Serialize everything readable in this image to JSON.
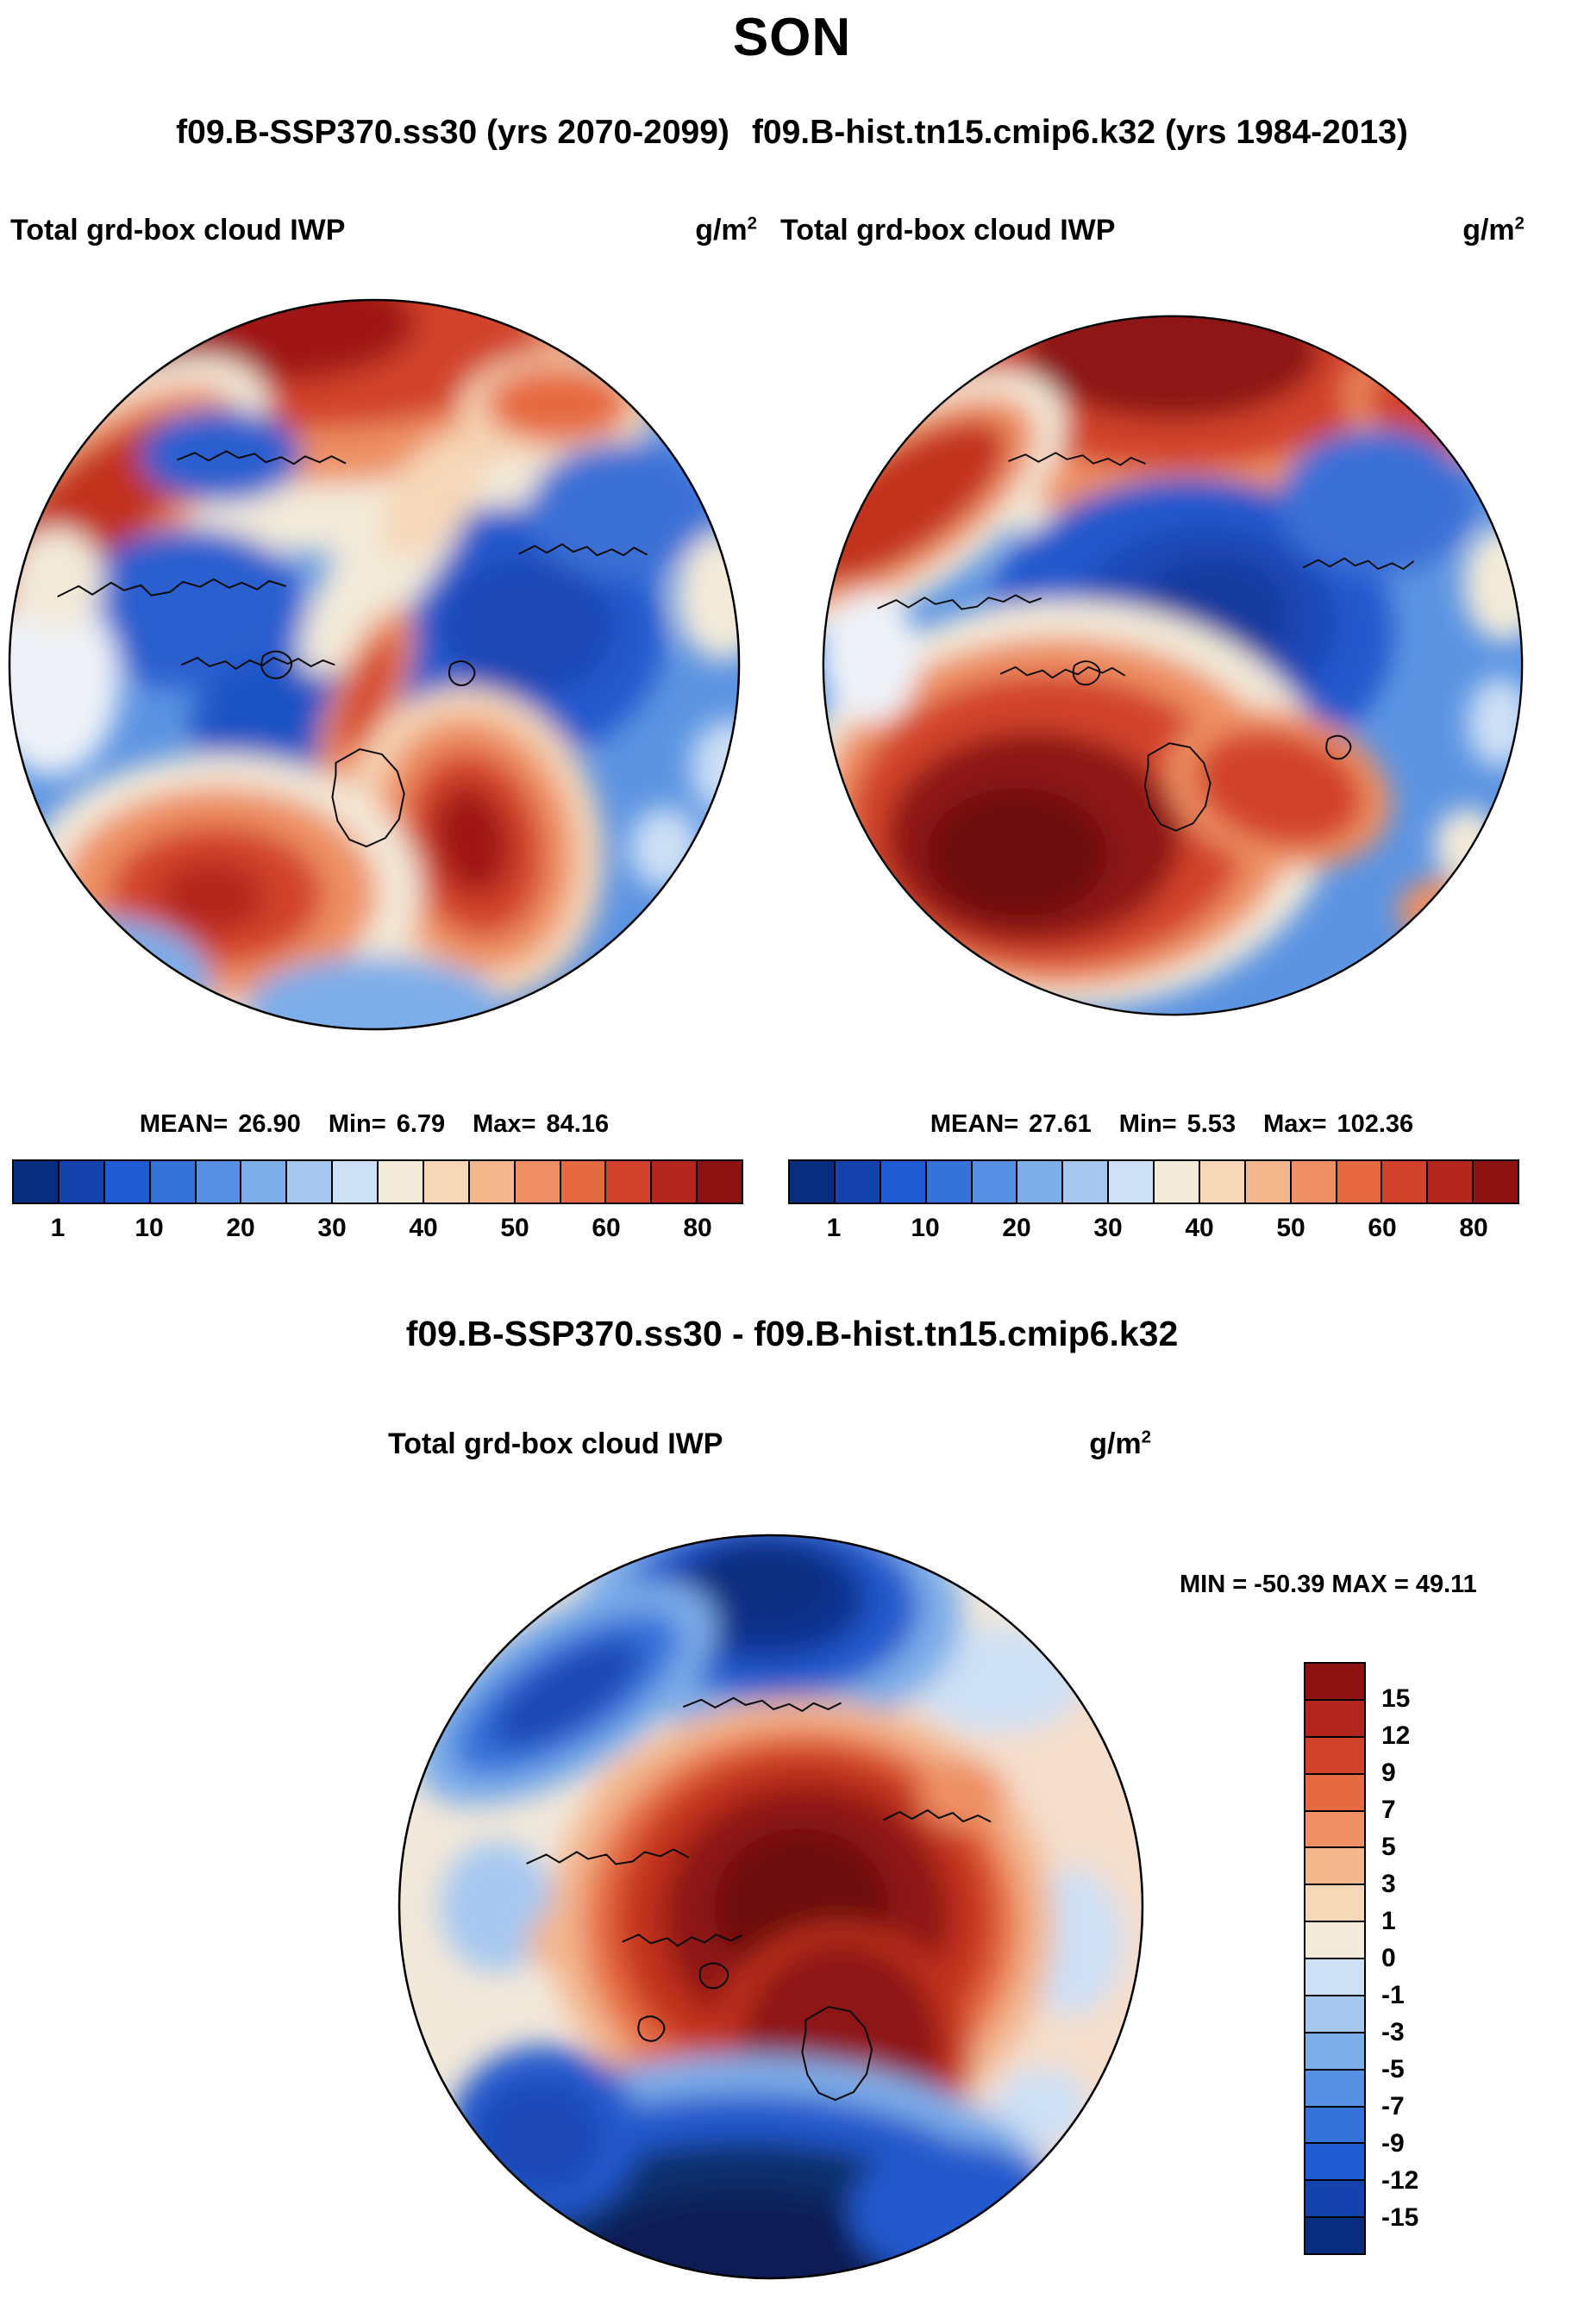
{
  "page": {
    "title": "SON",
    "run_left": "f09.B-SSP370.ss30 (yrs 2070-2099)",
    "run_right": "f09.B-hist.tn15.cmip6.k32 (yrs 1984-2013)"
  },
  "labels": {
    "mean": "MEAN=",
    "min": "Min=",
    "max": "Max=",
    "diff_min": "MIN =",
    "diff_max": "MAX ="
  },
  "panels": [
    {
      "id": "ssp370",
      "var_title": "Total grd-box cloud IWP",
      "units_base": "g/m",
      "units_exp": "2",
      "stats": {
        "mean": "26.90",
        "min": "6.79",
        "max": "84.16"
      },
      "colorbar": {
        "colors": [
          "#082d7f",
          "#1543ae",
          "#1f5bd1",
          "#3572da",
          "#5590e2",
          "#7dade9",
          "#a6c8f0",
          "#cde0f5",
          "#f3ead9",
          "#f6d7b8",
          "#f3b68d",
          "#ee9064",
          "#e66a40",
          "#d2422a",
          "#b3261d",
          "#8e1212"
        ],
        "ticks": [
          {
            "label": "1",
            "pos": 0.0625
          },
          {
            "label": "10",
            "pos": 0.1875
          },
          {
            "label": "20",
            "pos": 0.3125
          },
          {
            "label": "30",
            "pos": 0.4375
          },
          {
            "label": "40",
            "pos": 0.5625
          },
          {
            "label": "50",
            "pos": 0.6875
          },
          {
            "label": "60",
            "pos": 0.8125
          },
          {
            "label": "80",
            "pos": 0.9375
          }
        ]
      }
    },
    {
      "id": "hist",
      "var_title": "Total grd-box cloud IWP",
      "units_base": "g/m",
      "units_exp": "2",
      "stats": {
        "mean": "27.61",
        "min": "5.53",
        "max": "102.36"
      },
      "colorbar": {
        "colors": [
          "#082d7f",
          "#1543ae",
          "#1f5bd1",
          "#3572da",
          "#5590e2",
          "#7dade9",
          "#a6c8f0",
          "#cde0f5",
          "#f3ead9",
          "#f6d7b8",
          "#f3b68d",
          "#ee9064",
          "#e66a40",
          "#d2422a",
          "#b3261d",
          "#8e1212"
        ],
        "ticks": [
          {
            "label": "1",
            "pos": 0.0625
          },
          {
            "label": "10",
            "pos": 0.1875
          },
          {
            "label": "20",
            "pos": 0.3125
          },
          {
            "label": "30",
            "pos": 0.4375
          },
          {
            "label": "40",
            "pos": 0.5625
          },
          {
            "label": "50",
            "pos": 0.6875
          },
          {
            "label": "60",
            "pos": 0.8125
          },
          {
            "label": "80",
            "pos": 0.9375
          }
        ]
      }
    }
  ],
  "diff": {
    "title": "f09.B-SSP370.ss30 - f09.B-hist.tn15.cmip6.k32",
    "var_title": "Total grd-box cloud IWP",
    "units_base": "g/m",
    "units_exp": "2",
    "min": "-50.39",
    "max": "49.11",
    "colorbar": {
      "colors": [
        "#8e1212",
        "#b3261d",
        "#d2422a",
        "#e66a40",
        "#ee9064",
        "#f3b68d",
        "#f6d7b8",
        "#f3ead9",
        "#cde0f5",
        "#a6c8f0",
        "#7dade9",
        "#5590e2",
        "#3572da",
        "#1f5bd1",
        "#1543ae",
        "#082d7f"
      ],
      "ticks": [
        {
          "label": "15",
          "pos": 0.0625
        },
        {
          "label": "12",
          "pos": 0.125
        },
        {
          "label": "9",
          "pos": 0.1875
        },
        {
          "label": "7",
          "pos": 0.25
        },
        {
          "label": "5",
          "pos": 0.3125
        },
        {
          "label": "3",
          "pos": 0.375
        },
        {
          "label": "1",
          "pos": 0.4375
        },
        {
          "label": "0",
          "pos": 0.5
        },
        {
          "label": "-1",
          "pos": 0.5625
        },
        {
          "label": "-3",
          "pos": 0.625
        },
        {
          "label": "-5",
          "pos": 0.6875
        },
        {
          "label": "-7",
          "pos": 0.75
        },
        {
          "label": "-9",
          "pos": 0.8125
        },
        {
          "label": "-12",
          "pos": 0.875
        },
        {
          "label": "-15",
          "pos": 0.9375
        }
      ]
    }
  },
  "chart_data": [
    {
      "type": "heatmap",
      "projection": "north-polar-stereographic",
      "title": "Total grd-box cloud IWP",
      "run": "f09.B-SSP370.ss30",
      "years": "2070-2099",
      "units": "g/m^2",
      "season": "SON",
      "stats": {
        "mean": 26.9,
        "min": 6.79,
        "max": 84.16
      },
      "colorbar_tick_values": [
        1,
        10,
        20,
        30,
        40,
        50,
        60,
        80
      ],
      "palette": "blue-white-red",
      "legend_position": "bottom"
    },
    {
      "type": "heatmap",
      "projection": "north-polar-stereographic",
      "title": "Total grd-box cloud IWP",
      "run": "f09.B-hist.tn15.cmip6.k32",
      "years": "1984-2013",
      "units": "g/m^2",
      "season": "SON",
      "stats": {
        "mean": 27.61,
        "min": 5.53,
        "max": 102.36
      },
      "colorbar_tick_values": [
        1,
        10,
        20,
        30,
        40,
        50,
        60,
        80
      ],
      "palette": "blue-white-red",
      "legend_position": "bottom"
    },
    {
      "type": "heatmap",
      "projection": "north-polar-stereographic",
      "title": "Total grd-box cloud IWP difference",
      "run": "f09.B-SSP370.ss30 - f09.B-hist.tn15.cmip6.k32",
      "units": "g/m^2",
      "season": "SON",
      "stats": {
        "min": -50.39,
        "max": 49.11
      },
      "colorbar_tick_values": [
        15,
        12,
        9,
        7,
        5,
        3,
        1,
        0,
        -1,
        -3,
        -5,
        -7,
        -9,
        -12,
        -15
      ],
      "palette": "red-white-blue",
      "legend_position": "right"
    }
  ]
}
